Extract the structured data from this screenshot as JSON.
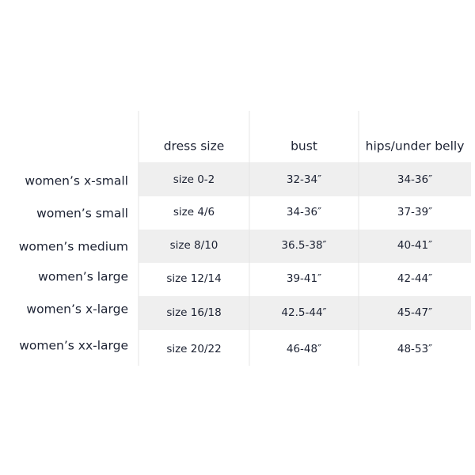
{
  "table": {
    "columns": [
      "dress size",
      "bust",
      "hips/under belly"
    ],
    "rows": [
      {
        "label": "women’s x-small",
        "cells": [
          "size 0-2",
          "32-34″",
          "34-36″"
        ]
      },
      {
        "label": "women’s small",
        "cells": [
          "size 4/6",
          "34-36″",
          "37-39″"
        ]
      },
      {
        "label": "women’s medium",
        "cells": [
          "size 8/10",
          "36.5-38″",
          "40-41″"
        ]
      },
      {
        "label": "women’s large",
        "cells": [
          "size 12/14",
          "39-41″",
          "42-44″"
        ]
      },
      {
        "label": "women’s x-large",
        "cells": [
          "size 16/18",
          "42.5-44″",
          "45-47″"
        ]
      },
      {
        "label": "women’s xx-large",
        "cells": [
          "size 20/22",
          "46-48″",
          "48-53″"
        ]
      }
    ]
  }
}
